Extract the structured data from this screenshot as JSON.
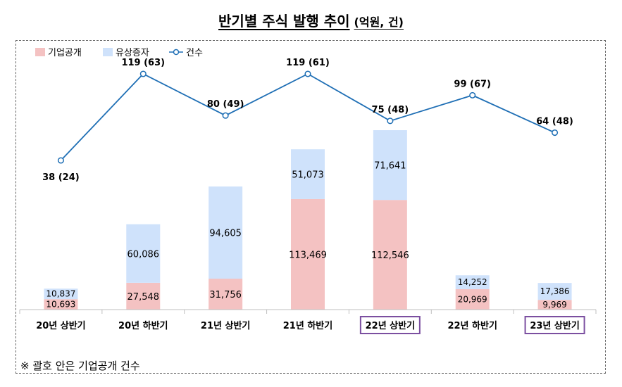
{
  "title": "반기별 주식 발행 추이",
  "unit": "(억원, 건)",
  "note": "※ 괄호 안은 기업공개 건수",
  "colors": {
    "ipo": "#f4c2c2",
    "rights": "#cfe2fb",
    "count_line": "#1f6fb5",
    "highlight_box": "#7b4fa0"
  },
  "chart_data": {
    "type": "bar",
    "stacked": true,
    "categories": [
      "20년 상반기",
      "20년 하반기",
      "21년 상반기",
      "21년 하반기",
      "22년 상반기",
      "22년 하반기",
      "23년 상반기"
    ],
    "highlighted_categories": [
      "22년 상반기",
      "23년 상반기"
    ],
    "series": [
      {
        "name": "기업공개",
        "values": [
          10693,
          27548,
          31756,
          113469,
          112546,
          20969,
          9969
        ],
        "labels": [
          "10,693",
          "27,548",
          "31,756",
          "113,469",
          "112,546",
          "20,969",
          "9,969"
        ]
      },
      {
        "name": "유상증자",
        "values": [
          10837,
          60086,
          94605,
          51073,
          71641,
          14252,
          17386
        ],
        "labels": [
          "10,837",
          "60,086",
          "94,605",
          "51,073",
          "71,641",
          "14,252",
          "17,386"
        ]
      }
    ],
    "line_series": {
      "name": "건수",
      "values": [
        38,
        119,
        80,
        119,
        75,
        99,
        64
      ],
      "ipo_counts": [
        24,
        63,
        49,
        61,
        48,
        67,
        48
      ],
      "labels": [
        "38 (24)",
        "119 (63)",
        "80 (49)",
        "119 (61)",
        "75 (48)",
        "99 (67)",
        "64 (48)"
      ]
    },
    "legend_position": "top-left",
    "grid": false
  }
}
